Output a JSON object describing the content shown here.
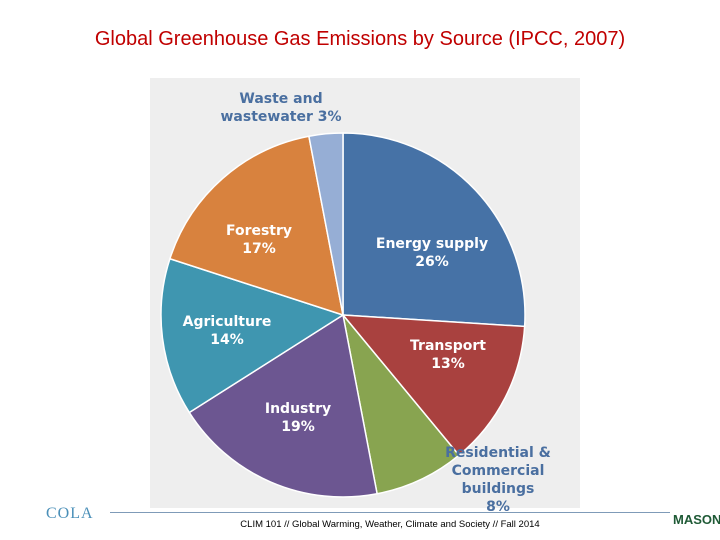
{
  "chart_data": {
    "type": "pie",
    "title": "Global Greenhouse Gas Emissions by Source (IPCC, 2007)",
    "categories": [
      "Energy supply",
      "Transport",
      "Residential & Commercial buildings",
      "Industry",
      "Agriculture",
      "Forestry",
      "Waste and wastewater"
    ],
    "values": [
      26,
      13,
      8,
      19,
      14,
      17,
      3
    ],
    "value_labels": [
      "26%",
      "13%",
      "8%",
      "19%",
      "14%",
      "17%",
      "3%"
    ],
    "colors": [
      "#4672a6",
      "#a9413f",
      "#88a450",
      "#6c5691",
      "#3f96b0",
      "#d8823e",
      "#96aed5"
    ]
  },
  "footer": "CLIM 101 // Global Warming, Weather, Climate and Society // Fall 2014",
  "logos": {
    "left": "COLA",
    "right": "MASON"
  }
}
